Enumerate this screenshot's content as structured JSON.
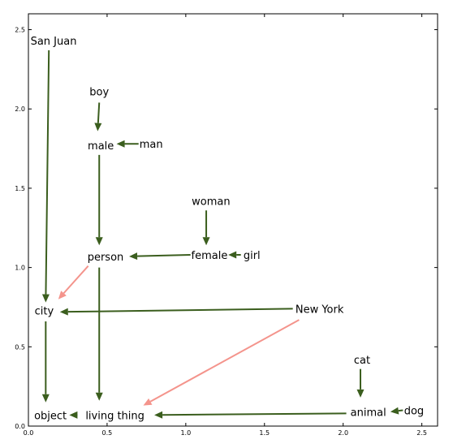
{
  "chart_data": {
    "type": "scatter",
    "title": "",
    "xlabel": "",
    "ylabel": "",
    "xlim": [
      0,
      2.6
    ],
    "ylim": [
      0,
      2.6
    ],
    "xticks": [
      {
        "value": 0.0,
        "label": "0.0"
      },
      {
        "value": 0.5,
        "label": "0.5"
      },
      {
        "value": 1.0,
        "label": "1.0"
      },
      {
        "value": 1.5,
        "label": "1.5"
      },
      {
        "value": 2.0,
        "label": "2.0"
      },
      {
        "value": 2.5,
        "label": "2.5"
      }
    ],
    "yticks": [
      {
        "value": 0.0,
        "label": "0.0"
      },
      {
        "value": 0.5,
        "label": "0.5"
      },
      {
        "value": 1.0,
        "label": "1.0"
      },
      {
        "value": 1.5,
        "label": "1.5"
      },
      {
        "value": 2.0,
        "label": "2.0"
      },
      {
        "value": 2.5,
        "label": "2.5"
      }
    ],
    "grid": false,
    "points": [
      {
        "name": "San Juan",
        "x": 0.16,
        "y": 2.43
      },
      {
        "name": "boy",
        "x": 0.45,
        "y": 2.11
      },
      {
        "name": "male",
        "x": 0.46,
        "y": 1.77
      },
      {
        "name": "man",
        "x": 0.78,
        "y": 1.78
      },
      {
        "name": "woman",
        "x": 1.16,
        "y": 1.42
      },
      {
        "name": "person",
        "x": 0.49,
        "y": 1.07
      },
      {
        "name": "female",
        "x": 1.15,
        "y": 1.08
      },
      {
        "name": "girl",
        "x": 1.42,
        "y": 1.08
      },
      {
        "name": "city",
        "x": 0.1,
        "y": 0.73
      },
      {
        "name": "New York",
        "x": 1.85,
        "y": 0.74
      },
      {
        "name": "cat",
        "x": 2.12,
        "y": 0.42
      },
      {
        "name": "object",
        "x": 0.14,
        "y": 0.07
      },
      {
        "name": "living thing",
        "x": 0.55,
        "y": 0.07
      },
      {
        "name": "animal",
        "x": 2.16,
        "y": 0.09
      },
      {
        "name": "dog",
        "x": 2.45,
        "y": 0.1
      }
    ],
    "arrows": [
      {
        "from": "San Juan",
        "x1": 0.13,
        "y1": 2.37,
        "x2": 0.11,
        "y2": 0.78,
        "color": "#3b5e1e"
      },
      {
        "from": "boy",
        "x1": 0.45,
        "y1": 2.04,
        "x2": 0.44,
        "y2": 1.86,
        "color": "#3b5e1e"
      },
      {
        "from": "man",
        "x1": 0.7,
        "y1": 1.78,
        "x2": 0.56,
        "y2": 1.78,
        "color": "#3b5e1e"
      },
      {
        "from": "male",
        "x1": 0.45,
        "y1": 1.71,
        "x2": 0.45,
        "y2": 1.14,
        "color": "#3b5e1e"
      },
      {
        "from": "woman",
        "x1": 1.13,
        "y1": 1.36,
        "x2": 1.13,
        "y2": 1.14,
        "color": "#3b5e1e"
      },
      {
        "from": "female",
        "x1": 1.03,
        "y1": 1.08,
        "x2": 0.64,
        "y2": 1.07,
        "color": "#3b5e1e"
      },
      {
        "from": "girl",
        "x1": 1.35,
        "y1": 1.08,
        "x2": 1.27,
        "y2": 1.08,
        "color": "#3b5e1e"
      },
      {
        "from": "person",
        "x1": 0.38,
        "y1": 1.01,
        "x2": 0.19,
        "y2": 0.8,
        "color": "#f4948c"
      },
      {
        "from": "person",
        "x1": 0.45,
        "y1": 1.0,
        "x2": 0.45,
        "y2": 0.16,
        "color": "#3b5e1e"
      },
      {
        "from": "New York",
        "x1": 1.68,
        "y1": 0.74,
        "x2": 0.2,
        "y2": 0.72,
        "color": "#3b5e1e"
      },
      {
        "from": "city",
        "x1": 0.11,
        "y1": 0.66,
        "x2": 0.11,
        "y2": 0.15,
        "color": "#3b5e1e"
      },
      {
        "from": "New York",
        "x1": 1.72,
        "y1": 0.67,
        "x2": 0.73,
        "y2": 0.13,
        "color": "#f4948c"
      },
      {
        "from": "cat",
        "x1": 2.11,
        "y1": 0.36,
        "x2": 2.11,
        "y2": 0.18,
        "color": "#3b5e1e"
      },
      {
        "from": "animal",
        "x1": 2.02,
        "y1": 0.08,
        "x2": 0.8,
        "y2": 0.07,
        "color": "#3b5e1e"
      },
      {
        "from": "dog",
        "x1": 2.38,
        "y1": 0.1,
        "x2": 2.3,
        "y2": 0.09,
        "color": "#3b5e1e"
      },
      {
        "from": "living thing",
        "x1": 0.3,
        "y1": 0.07,
        "x2": 0.26,
        "y2": 0.07,
        "color": "#3b5e1e"
      }
    ]
  }
}
